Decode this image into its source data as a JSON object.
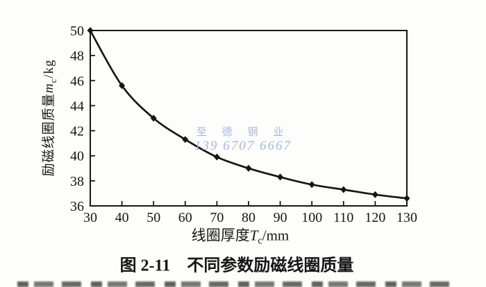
{
  "page": {
    "background": "#fdfdfb",
    "ink": "#161616"
  },
  "axis_labels": {
    "y": {
      "prefix": "励磁线圈质量",
      "var": "m",
      "sub": "c",
      "unit": "/kg"
    },
    "x": {
      "prefix": "线圈厚度",
      "var": "T",
      "sub": "c",
      "unit": "/mm"
    }
  },
  "watermark": {
    "line1": "至 德 钢 业",
    "line2": "139 6707 6667",
    "color": "#a3b7e4"
  },
  "caption": "图 2-11　不同参数励磁线圈质量",
  "chart_data": {
    "type": "line",
    "title": "",
    "xlabel": "线圈厚度Tc/mm",
    "ylabel": "励磁线圈质量mc/kg",
    "x": [
      30,
      40,
      50,
      60,
      70,
      80,
      90,
      100,
      110,
      120,
      130
    ],
    "series": [
      {
        "name": "励磁线圈质量",
        "values": [
          50.0,
          45.6,
          43.0,
          41.3,
          39.9,
          39.0,
          38.3,
          37.7,
          37.3,
          36.9,
          36.6
        ],
        "color": "#161616",
        "marker": "diamond"
      }
    ],
    "xlim": [
      30,
      130
    ],
    "ylim": [
      36,
      50
    ],
    "xticks": [
      30,
      40,
      50,
      60,
      70,
      80,
      90,
      100,
      110,
      120,
      130
    ],
    "yticks": [
      36,
      38,
      40,
      42,
      44,
      46,
      48,
      50
    ],
    "grid": false,
    "frame": "box",
    "legend": "none"
  }
}
